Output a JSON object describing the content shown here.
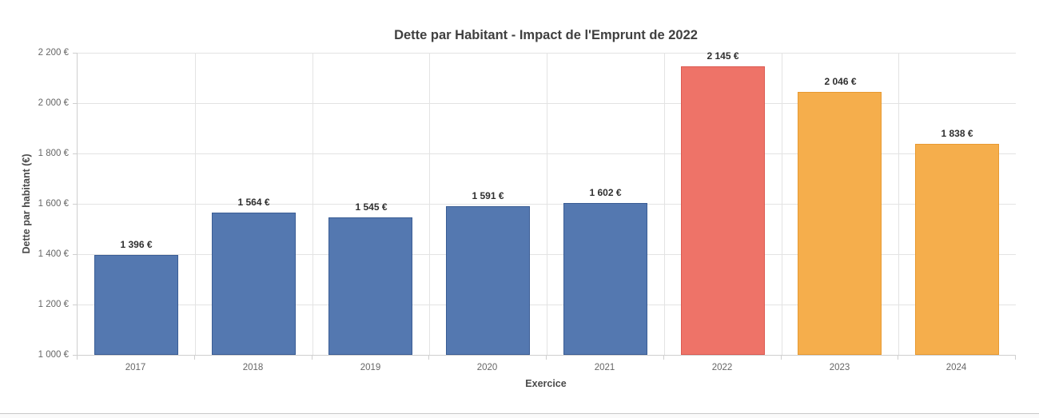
{
  "title": "Dette par Habitant - Impact de l'Emprunt de 2022",
  "chart_data": {
    "type": "bar",
    "title": "Dette par Habitant - Impact de l'Emprunt de 2022",
    "xlabel": "Exercice",
    "ylabel": "Dette par habitant (€)",
    "ylim": [
      1000,
      2200
    ],
    "ytick_step": 200,
    "grid": true,
    "legend": false,
    "yticks": [
      {
        "value": 2200,
        "label": "2 200 €"
      },
      {
        "value": 2000,
        "label": "2 000 €"
      },
      {
        "value": 1800,
        "label": "1 800 €"
      },
      {
        "value": 1600,
        "label": "1 600 €"
      },
      {
        "value": 1400,
        "label": "1 400 €"
      },
      {
        "value": 1200,
        "label": "1 200 €"
      },
      {
        "value": 1000,
        "label": "1 000 €"
      }
    ],
    "categories": [
      "2017",
      "2018",
      "2019",
      "2020",
      "2021",
      "2022",
      "2023",
      "2024"
    ],
    "values": [
      1396,
      1564,
      1545,
      1591,
      1602,
      2145,
      2046,
      1838
    ],
    "bar_labels": [
      "1 396 €",
      "1 564 €",
      "1 545 €",
      "1 591 €",
      "1 602 €",
      "2 145 €",
      "2 046 €",
      "1 838 €"
    ],
    "bar_colors": [
      "blue",
      "blue",
      "blue",
      "blue",
      "blue",
      "red",
      "orange",
      "orange"
    ]
  },
  "palette": {
    "blue": {
      "fill": "#5478b0",
      "border": "#3a5d95"
    },
    "red": {
      "fill": "#ee7368",
      "border": "#dc5a51"
    },
    "orange": {
      "fill": "#f5ae4c",
      "border": "#e89a31"
    }
  },
  "colors": {
    "background": "#ffffff",
    "grid": "#e3e3e3",
    "axis": "#cfcfcf",
    "tick_text": "#666666",
    "title_text": "#3f3f3f",
    "axis_title_text": "#4a4a4a",
    "label_text": "#2f2f2f",
    "window_edge": "#c9c9c9"
  }
}
